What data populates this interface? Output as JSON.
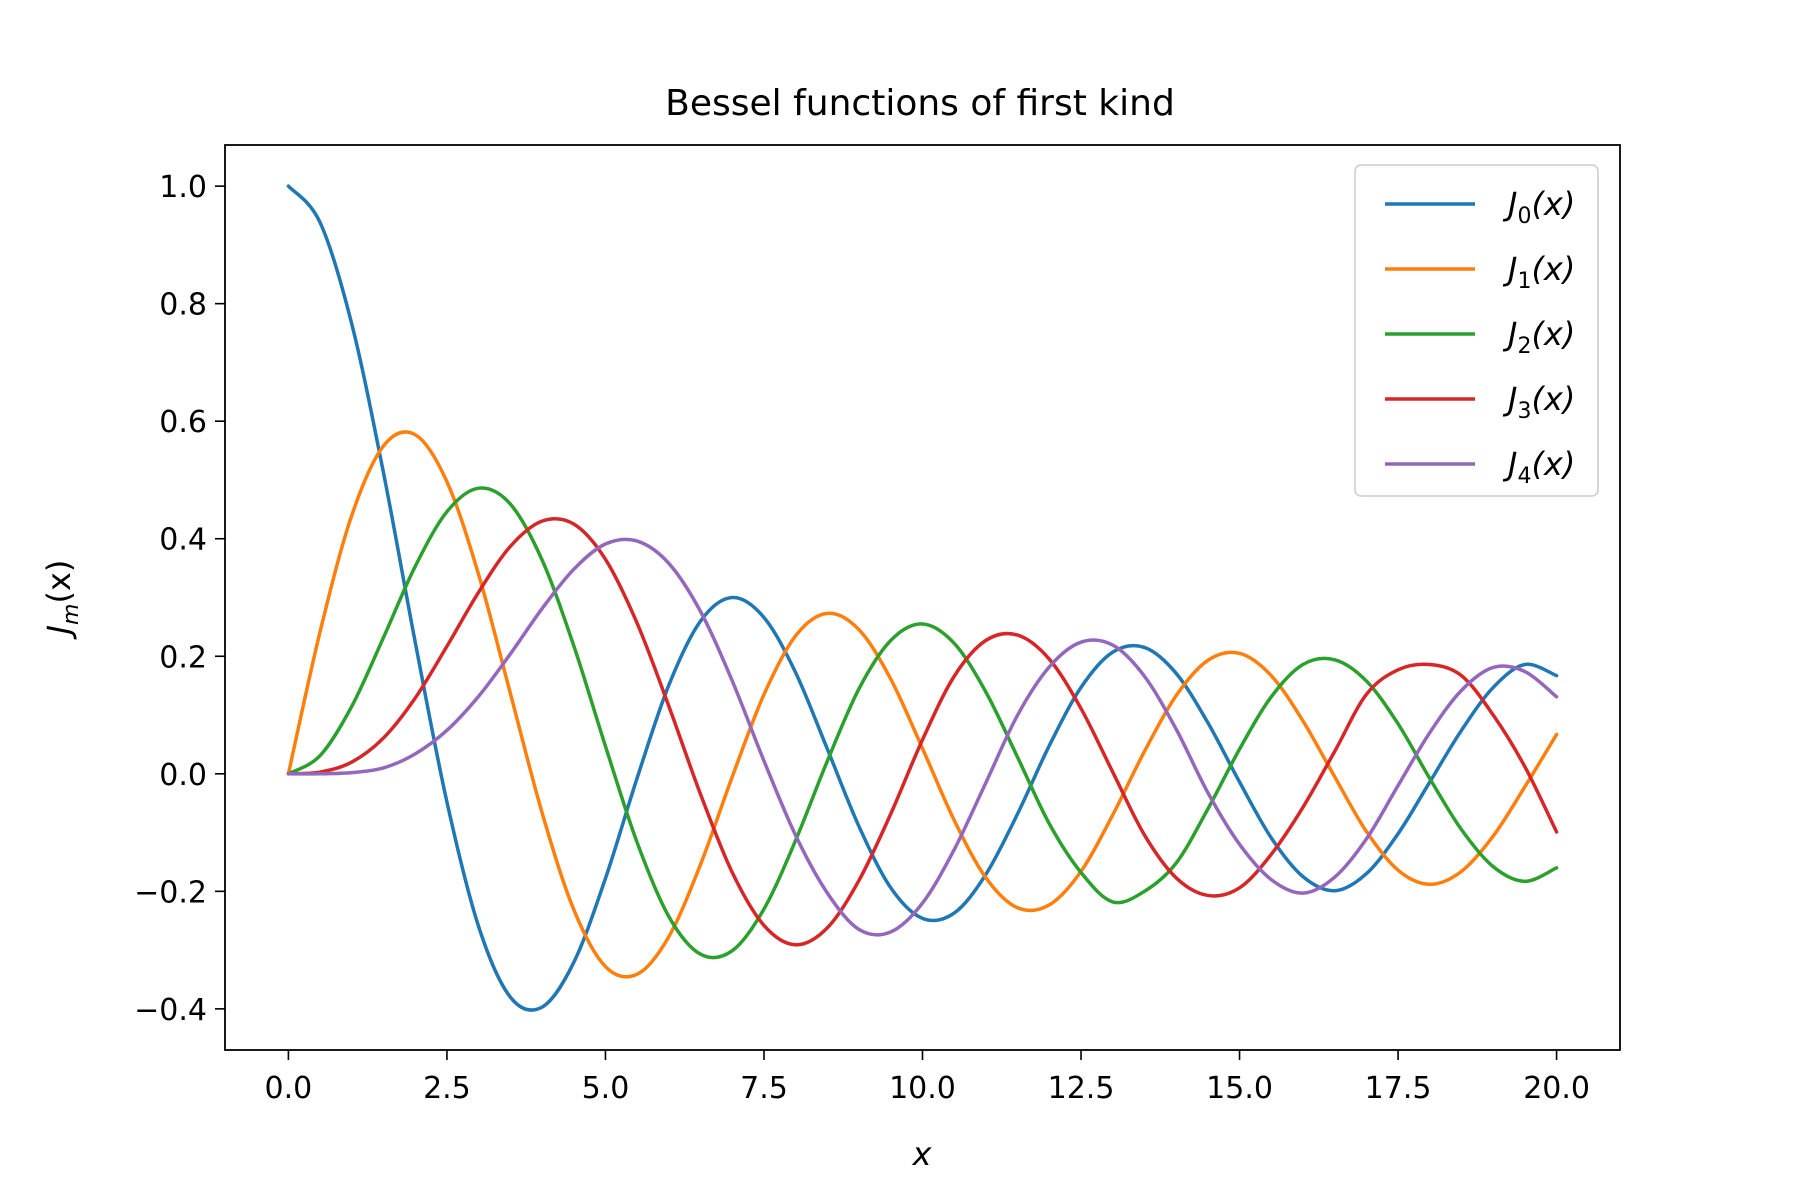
{
  "chart_data": {
    "type": "line",
    "title": "Bessel functions of first kind",
    "xlabel": "x",
    "ylabel": {
      "main": "J",
      "sub": "m",
      "rest": "(x)"
    },
    "xlim": [
      -1.0,
      21.0
    ],
    "ylim": [
      -0.47,
      1.07
    ],
    "x_ticks": [
      0.0,
      2.5,
      5.0,
      7.5,
      10.0,
      12.5,
      15.0,
      17.5,
      20.0
    ],
    "x_tick_labels": [
      "0.0",
      "2.5",
      "5.0",
      "7.5",
      "10.0",
      "12.5",
      "15.0",
      "17.5",
      "20.0"
    ],
    "y_ticks": [
      -0.4,
      -0.2,
      0.0,
      0.2,
      0.4,
      0.6,
      0.8,
      1.0
    ],
    "y_tick_labels": [
      "−0.4",
      "−0.2",
      "0.0",
      "0.2",
      "0.4",
      "0.6",
      "0.8",
      "1.0"
    ],
    "grid": false,
    "legend_position": "top-right",
    "x": [
      0,
      0.5,
      1,
      1.5,
      2,
      2.5,
      3,
      3.5,
      4,
      4.5,
      5,
      5.5,
      6,
      6.5,
      7,
      7.5,
      8,
      8.5,
      9,
      9.5,
      10,
      10.5,
      11,
      11.5,
      12,
      12.5,
      13,
      13.5,
      14,
      14.5,
      15,
      15.5,
      16,
      16.5,
      17,
      17.5,
      18,
      18.5,
      19,
      19.5,
      20
    ],
    "series": [
      {
        "name_main": "J",
        "name_sub": "0",
        "name_rest": "(x)",
        "color": "#1f77b4",
        "values": [
          1.0,
          0.938,
          0.765,
          0.512,
          0.224,
          -0.048,
          -0.26,
          -0.38,
          -0.397,
          -0.321,
          -0.178,
          -0.007,
          0.151,
          0.26,
          0.3,
          0.266,
          0.172,
          0.042,
          -0.09,
          -0.194,
          -0.246,
          -0.237,
          -0.171,
          -0.068,
          0.048,
          0.147,
          0.207,
          0.215,
          0.171,
          0.087,
          -0.014,
          -0.109,
          -0.175,
          -0.199,
          -0.17,
          -0.102,
          -0.014,
          0.074,
          0.147,
          0.186,
          0.167
        ]
      },
      {
        "name_main": "J",
        "name_sub": "1",
        "name_rest": "(x)",
        "color": "#ff7f0e",
        "values": [
          0.0,
          0.242,
          0.44,
          0.558,
          0.577,
          0.497,
          0.339,
          0.137,
          -0.066,
          -0.231,
          -0.328,
          -0.341,
          -0.277,
          -0.154,
          -0.005,
          0.135,
          0.235,
          0.273,
          0.245,
          0.161,
          0.043,
          -0.079,
          -0.177,
          -0.228,
          -0.223,
          -0.166,
          -0.07,
          0.038,
          0.133,
          0.193,
          0.205,
          0.167,
          0.09,
          -0.005,
          -0.098,
          -0.164,
          -0.188,
          -0.166,
          -0.106,
          -0.022,
          0.067
        ]
      },
      {
        "name_main": "J",
        "name_sub": "2",
        "name_rest": "(x)",
        "color": "#2ca02c",
        "values": [
          0.0,
          0.031,
          0.115,
          0.232,
          0.353,
          0.446,
          0.486,
          0.459,
          0.364,
          0.218,
          0.047,
          -0.117,
          -0.243,
          -0.307,
          -0.301,
          -0.23,
          -0.113,
          0.022,
          0.145,
          0.227,
          0.255,
          0.222,
          0.139,
          0.028,
          -0.085,
          -0.168,
          -0.218,
          -0.2,
          -0.152,
          -0.06,
          0.042,
          0.131,
          0.186,
          0.194,
          0.158,
          0.085,
          -0.008,
          -0.095,
          -0.158,
          -0.183,
          -0.16
        ]
      },
      {
        "name_main": "J",
        "name_sub": "3",
        "name_rest": "(x)",
        "color": "#d62728",
        "values": [
          0.0,
          0.003,
          0.02,
          0.061,
          0.129,
          0.217,
          0.309,
          0.387,
          0.43,
          0.425,
          0.365,
          0.256,
          0.115,
          -0.035,
          -0.168,
          -0.258,
          -0.291,
          -0.262,
          -0.181,
          -0.068,
          0.058,
          0.166,
          0.227,
          0.236,
          0.195,
          0.111,
          0.003,
          -0.104,
          -0.177,
          -0.207,
          -0.194,
          -0.137,
          -0.057,
          0.038,
          0.135,
          0.177,
          0.186,
          0.167,
          0.1,
          0.012,
          -0.099
        ]
      },
      {
        "name_main": "J",
        "name_sub": "4",
        "name_rest": "(x)",
        "color": "#9467bd",
        "values": [
          0.0,
          0.0,
          0.002,
          0.01,
          0.034,
          0.074,
          0.132,
          0.204,
          0.281,
          0.348,
          0.391,
          0.396,
          0.358,
          0.276,
          0.158,
          0.022,
          -0.105,
          -0.203,
          -0.265,
          -0.269,
          -0.22,
          -0.129,
          -0.015,
          0.1,
          0.182,
          0.224,
          0.219,
          0.166,
          0.076,
          -0.032,
          -0.12,
          -0.18,
          -0.203,
          -0.176,
          -0.111,
          -0.02,
          0.07,
          0.142,
          0.181,
          0.174,
          0.131
        ]
      }
    ]
  }
}
